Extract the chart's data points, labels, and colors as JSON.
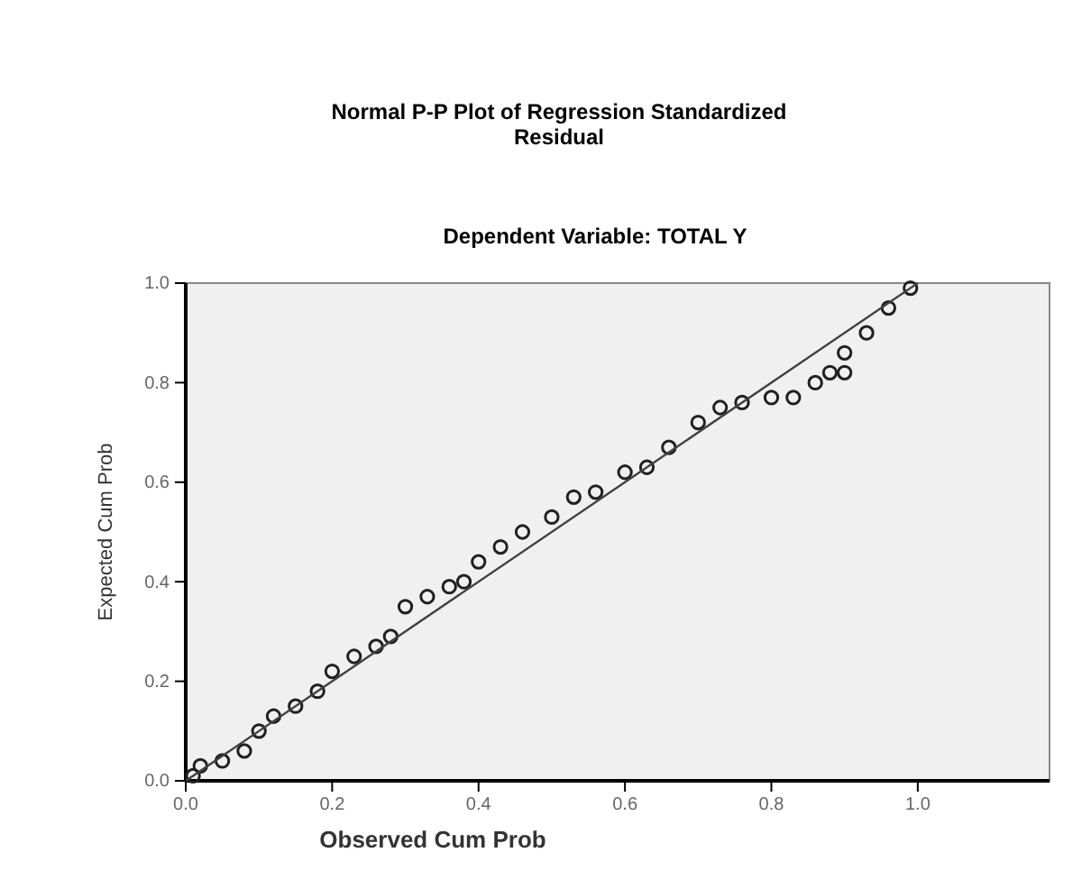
{
  "chart_data": {
    "type": "scatter",
    "title": "Normal P-P Plot of Regression Standardized Residual",
    "subtitle": "Dependent Variable: TOTAL Y",
    "xlabel": "Observed Cum Prob",
    "ylabel": "Expected Cum Prob",
    "xlim": [
      0,
      1.18
    ],
    "ylim": [
      0,
      1
    ],
    "xticks": [
      {
        "value": 0,
        "label": "0.0"
      },
      {
        "value": 0.2,
        "label": "0.2"
      },
      {
        "value": 0.4,
        "label": "0.4"
      },
      {
        "value": 0.6,
        "label": "0.6"
      },
      {
        "value": 0.8,
        "label": "0.8"
      },
      {
        "value": 1,
        "label": "1.0"
      }
    ],
    "yticks": [
      {
        "value": 0,
        "label": "0.0"
      },
      {
        "value": 0.2,
        "label": "0.2"
      },
      {
        "value": 0.4,
        "label": "0.4"
      },
      {
        "value": 0.6,
        "label": "0.6"
      },
      {
        "value": 0.8,
        "label": "0.8"
      },
      {
        "value": 1,
        "label": "1.0"
      }
    ],
    "grid": false,
    "marker": "circle",
    "series": [
      {
        "color": "#202020",
        "x": [
          0.01,
          0.02,
          0.05,
          0.08,
          0.1,
          0.12,
          0.15,
          0.18,
          0.2,
          0.23,
          0.26,
          0.28,
          0.3,
          0.33,
          0.36,
          0.38,
          0.4,
          0.43,
          0.46,
          0.5,
          0.53,
          0.56,
          0.6,
          0.63,
          0.66,
          0.7,
          0.73,
          0.76,
          0.8,
          0.83,
          0.86,
          0.88,
          0.9,
          0.9,
          0.93,
          0.96,
          0.99
        ],
        "values": [
          0.01,
          0.03,
          0.04,
          0.06,
          0.1,
          0.13,
          0.15,
          0.18,
          0.22,
          0.25,
          0.27,
          0.29,
          0.35,
          0.37,
          0.39,
          0.4,
          0.44,
          0.47,
          0.5,
          0.53,
          0.57,
          0.58,
          0.62,
          0.63,
          0.67,
          0.72,
          0.75,
          0.76,
          0.77,
          0.77,
          0.8,
          0.82,
          0.82,
          0.86,
          0.9,
          0.95,
          0.99
        ]
      },
      {
        "type": "line",
        "color": "#404040",
        "line_style": "solid",
        "marker": "none",
        "x": [
          0,
          1
        ],
        "values": [
          0,
          1
        ]
      }
    ]
  }
}
